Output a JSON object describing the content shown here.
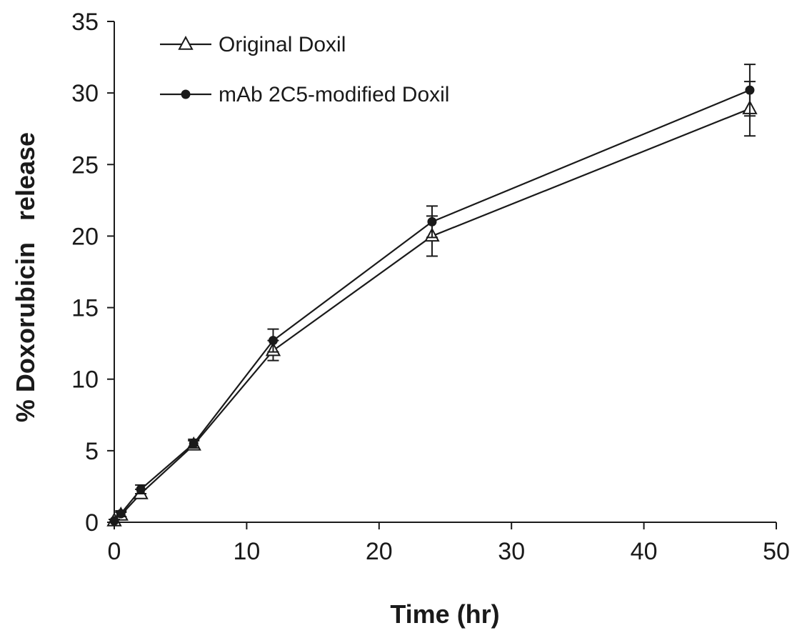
{
  "chart_data": {
    "type": "line",
    "title": "",
    "xlabel": "Time (hr)",
    "ylabel": "% Doxorubicin   release",
    "xlim": [
      0,
      50
    ],
    "ylim": [
      0,
      35
    ],
    "x_ticks": [
      0,
      10,
      20,
      30,
      40,
      50
    ],
    "y_ticks": [
      0,
      5,
      10,
      15,
      20,
      25,
      30,
      35
    ],
    "grid": false,
    "legend_position": "top-left",
    "line_color": "#1a1a1a",
    "series": [
      {
        "name": "Original Doxil",
        "marker": "open-triangle",
        "x": [
          0,
          0.5,
          2,
          6,
          12,
          24,
          48
        ],
        "y": [
          0.1,
          0.5,
          2.0,
          5.4,
          12.0,
          20.0,
          28.9
        ],
        "err": [
          0.1,
          0.2,
          0.3,
          0.3,
          0.7,
          1.4,
          1.9
        ]
      },
      {
        "name": "mAb 2C5-modified Doxil",
        "marker": "filled-circle",
        "x": [
          0,
          0.5,
          2,
          6,
          12,
          24,
          48
        ],
        "y": [
          0.1,
          0.6,
          2.3,
          5.5,
          12.7,
          21.0,
          30.2
        ],
        "err": [
          0.1,
          0.2,
          0.3,
          0.3,
          0.8,
          1.1,
          1.8
        ]
      }
    ]
  }
}
